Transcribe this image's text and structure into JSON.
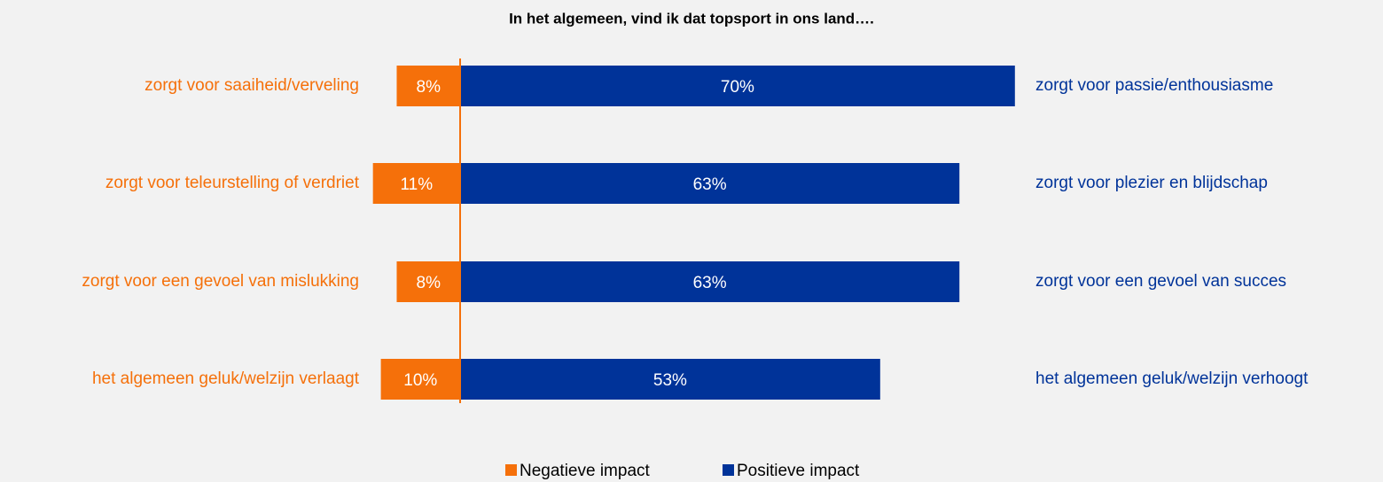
{
  "chart_data": {
    "type": "diverging_bar",
    "title": "In het algemeen, vind ik dat topsport in ons land….",
    "categories": [
      "zorgt voor saaiheid/verveling",
      "zorgt voor teleurstelling of verdriet",
      "zorgt voor een gevoel van mislukking",
      "het algemeen geluk/welzijn verlaagt"
    ],
    "categories_right": [
      "zorgt voor passie/enthousiasme",
      "zorgt voor plezier en blijdschap",
      "zorgt voor een gevoel van succes",
      "het algemeen geluk/welzijn verhoogt"
    ],
    "series": [
      {
        "name": "Negatieve impact",
        "color": "#f5700a",
        "values": [
          8,
          11,
          8,
          10
        ],
        "value_labels": [
          "8%",
          "11%",
          "8%",
          "10%"
        ]
      },
      {
        "name": "Positieve impact",
        "color": "#003399",
        "values": [
          70,
          63,
          63,
          53
        ],
        "value_labels": [
          "70%",
          "63%",
          "63%",
          "53%"
        ]
      }
    ],
    "legend": "bottom"
  }
}
